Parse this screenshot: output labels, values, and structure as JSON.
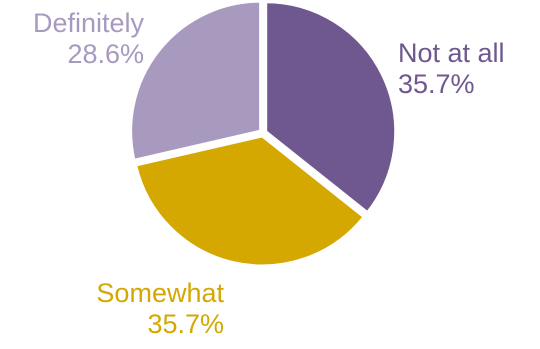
{
  "chart_data": {
    "type": "pie",
    "title": "",
    "slices": [
      {
        "label": "Not at all",
        "value": 35.7,
        "value_label": "35.7%",
        "color": "#6f578f"
      },
      {
        "label": "Somewhat",
        "value": 35.7,
        "value_label": "35.7%",
        "color": "#d4a800"
      },
      {
        "label": "Definitely",
        "value": 28.6,
        "value_label": "28.6%",
        "color": "#a899bf"
      }
    ],
    "start_angle": "12 o'clock",
    "direction": "clockwise",
    "legend": "none",
    "labels": "outside, category name above percentage, text colored to match slice"
  }
}
